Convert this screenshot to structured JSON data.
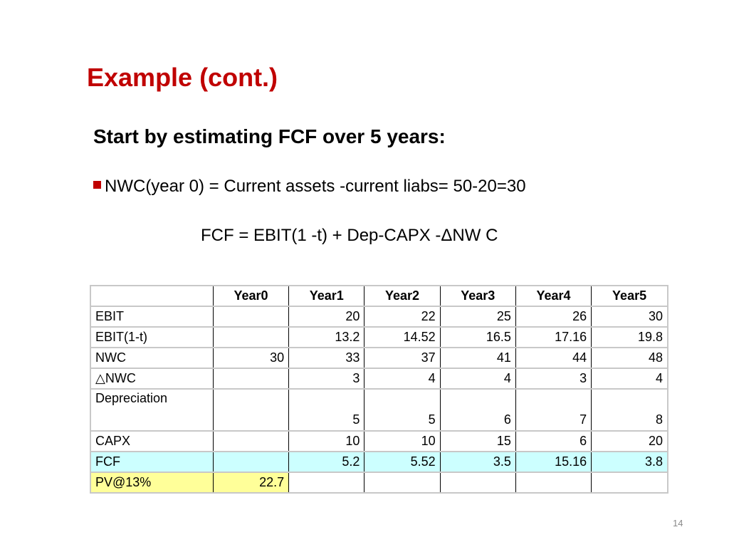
{
  "slide": {
    "title": "Example (cont.)",
    "subtitle": "Start by estimating FCF over 5 years:",
    "bullet": "NWC(year 0) = Current assets -current liabs= 50-20=30",
    "formula": "FCF = EBIT(1 -t) + Dep-CAPX -ΔNW C",
    "page_number": "14"
  },
  "colors": {
    "title": "#c00000",
    "fcf_row": "#ccffff",
    "pv_row": "#ffff99"
  },
  "table": {
    "headers": [
      "",
      "Year0",
      "Year1",
      "Year2",
      "Year3",
      "Year4",
      "Year5"
    ],
    "rows": [
      {
        "label": "EBIT",
        "values": [
          "",
          "20",
          "22",
          "25",
          "26",
          "30"
        ]
      },
      {
        "label": "EBIT(1-t)",
        "values": [
          "",
          "13.2",
          "14.52",
          "16.5",
          "17.16",
          "19.8"
        ]
      },
      {
        "label": "NWC",
        "values": [
          "30",
          "33",
          "37",
          "41",
          "44",
          "48"
        ]
      },
      {
        "label": "△NWC",
        "values": [
          "",
          "3",
          "4",
          "4",
          "3",
          "4"
        ]
      },
      {
        "label": "Depreciation",
        "values": [
          "",
          "5",
          "5",
          "6",
          "7",
          "8"
        ]
      },
      {
        "label": "CAPX",
        "values": [
          "",
          "10",
          "10",
          "15",
          "6",
          "20"
        ]
      },
      {
        "label": "FCF",
        "values": [
          "",
          "5.2",
          "5.52",
          "3.5",
          "15.16",
          "3.8"
        ]
      },
      {
        "label": "PV@13%",
        "values": [
          "22.7",
          "",
          "",
          "",
          "",
          ""
        ]
      }
    ]
  }
}
